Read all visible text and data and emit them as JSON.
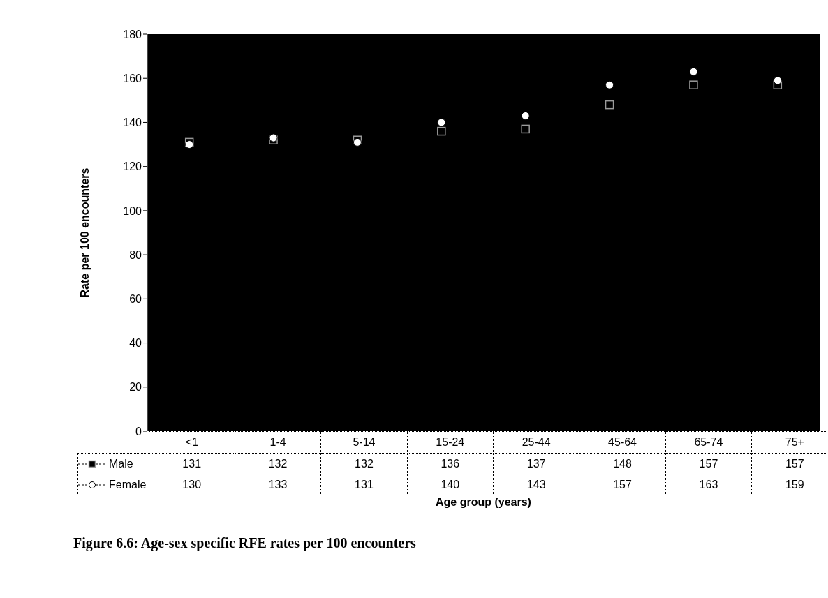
{
  "chart_data": {
    "type": "scatter",
    "title": "Figure 6.6: Age-sex specific RFE rates per 100 encounters",
    "xlabel": "Age group (years)",
    "ylabel": "Rate per 100 encounters",
    "categories": [
      "<1",
      "1-4",
      "5-14",
      "15-24",
      "25-44",
      "45-64",
      "65-74",
      "75+"
    ],
    "series": [
      {
        "name": "Male",
        "color": "#000000",
        "marker": "square",
        "line_style": "dashed",
        "values": [
          131,
          132,
          132,
          136,
          137,
          148,
          157,
          157
        ]
      },
      {
        "name": "Female",
        "color": "#ffffff",
        "marker": "circle",
        "line_style": "dashed",
        "values": [
          130,
          133,
          131,
          140,
          143,
          157,
          163,
          159
        ]
      }
    ],
    "ylim": [
      0,
      180
    ],
    "yticks": [
      0,
      20,
      40,
      60,
      80,
      100,
      120,
      140,
      160,
      180
    ],
    "grid": false,
    "legend": "bottom",
    "data_labels": true
  }
}
